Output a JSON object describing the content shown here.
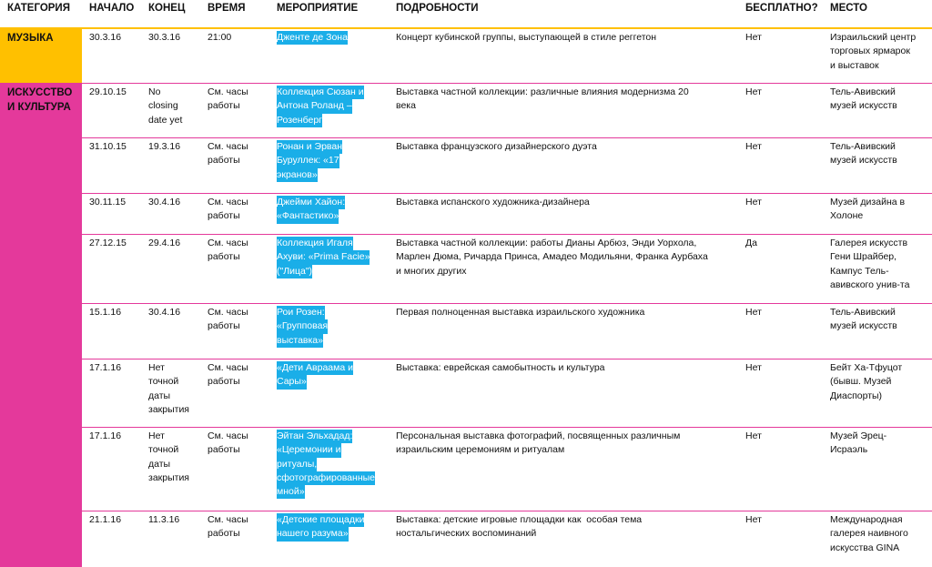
{
  "header": {
    "columns": [
      "КАТЕГОРИЯ",
      "НАЧАЛО",
      "КОНЕЦ",
      "ВРЕМЯ",
      "МЕРОПРИЯТИЕ",
      "ПОДРОБНОСТИ",
      "БЕСПЛАТНО?",
      "МЕСТО"
    ]
  },
  "table": {
    "rows": [
      {
        "category": [
          "МУЗЫКА"
        ],
        "start": [
          "30.3.16"
        ],
        "end": [
          "30.3.16"
        ],
        "time": [
          "21:00"
        ],
        "event": [
          "Дженте де Зона"
        ],
        "details": [
          "Концерт кубинской группы, выступающей в стиле реггетон"
        ],
        "free": [
          "Нет"
        ],
        "place": [
          "Израильский центр",
          "торговых ярмарок",
          "и выставок"
        ]
      },
      {
        "category": [
          "ИСКУССТВО",
          "И КУЛЬТУРА"
        ],
        "start": [
          "29.10.15"
        ],
        "end": [
          "No",
          "closing",
          "date yet"
        ],
        "time": [
          "См. часы",
          "работы"
        ],
        "event": [
          "Коллекция Сюзан и",
          "Антона Роланд –",
          "Розенберг"
        ],
        "details": [
          "Выставка частной коллекции: различные влияния модернизма 20",
          "века"
        ],
        "free": [
          "Нет"
        ],
        "place": [
          "Тель-Авивский",
          "музей искусств"
        ]
      },
      {
        "start": [
          "31.10.15"
        ],
        "end": [
          "19.3.16"
        ],
        "time": [
          "См. часы",
          "работы"
        ],
        "event": [
          "Ронан и Эрван",
          "Буруллек: «17",
          "экранов»"
        ],
        "details": [
          "Выставка французского дизайнерского дуэта"
        ],
        "free": [
          "Нет"
        ],
        "place": [
          "Тель-Авивский",
          "музей искусств"
        ]
      },
      {
        "start": [
          "30.11.15"
        ],
        "end": [
          "30.4.16"
        ],
        "time": [
          "См. часы",
          "работы"
        ],
        "event": [
          "Джейми Хайон:",
          "«Фантастико»"
        ],
        "details": [
          "Выставка испанского художника-дизайнера"
        ],
        "free": [
          "Нет"
        ],
        "place": [
          "Музей дизайна в",
          "Холоне"
        ]
      },
      {
        "start": [
          "27.12.15"
        ],
        "end": [
          "29.4.16"
        ],
        "time": [
          "См. часы",
          "работы"
        ],
        "event": [
          "Коллекция Игаля",
          "Ахуви: «Prima Facie»",
          "(\"Лица\")"
        ],
        "details": [
          "Выставка частной коллекции: работы Дианы Арбюз, Энди Уорхола,",
          "Марлен Дюма, Ричарда Принса, Амадео Модильяни, Франка Аурбаха",
          "и многих других"
        ],
        "free": [
          "Да"
        ],
        "place": [
          "Галерея искусств",
          "Гени Шрайбер,",
          "Кампус Тель-",
          "авивского унив-та"
        ]
      },
      {
        "start": [
          "15.1.16"
        ],
        "end": [
          "30.4.16"
        ],
        "time": [
          "См. часы",
          "работы"
        ],
        "event": [
          "Рои Розен:",
          "«Групповая",
          "выставка»"
        ],
        "details": [
          "Первая полноценная выставка израильского художника"
        ],
        "free": [
          "Нет"
        ],
        "place": [
          "Тель-Авивский",
          "музей искусств"
        ]
      },
      {
        "start": [
          "17.1.16"
        ],
        "end": [
          "Нет",
          "точной",
          "даты",
          "закрытия"
        ],
        "time": [
          "См. часы",
          "работы"
        ],
        "event": [
          "«Дети Авраама и",
          "Сары»"
        ],
        "details": [
          "Выставка: еврейская самобытность и культура"
        ],
        "free": [
          "Нет"
        ],
        "place": [
          "Бейт Ха-Тфуцот",
          "(бывш. Музей",
          "Диаспорты)"
        ]
      },
      {
        "start": [
          "17.1.16"
        ],
        "end": [
          "Нет",
          "точной",
          "даты",
          "закрытия"
        ],
        "time": [
          "См. часы",
          "работы"
        ],
        "event": [
          "Эйтан Эльхадад:",
          "«Церемонии и",
          "ритуалы,",
          "сфотографированные",
          "мной»"
        ],
        "details": [
          "Персональная выставка фотографий, посвященных различным",
          "израильским церемониям и ритуалам"
        ],
        "free": [
          "Нет"
        ],
        "place": [
          "Музей Эрец-",
          "Исраэль"
        ]
      },
      {
        "start": [
          "21.1.16"
        ],
        "end": [
          "11.3.16"
        ],
        "time": [
          "См. часы",
          "работы"
        ],
        "event": [
          "«Детские площадки",
          "нашего разума»"
        ],
        "details": [
          "Выставка: детские игровые площадки как  особая тема",
          "ностальгических воспоминаний"
        ],
        "free": [
          "Нет"
        ],
        "place": [
          "Международная",
          "галерея наивного",
          "искусства GINA"
        ]
      }
    ]
  }
}
